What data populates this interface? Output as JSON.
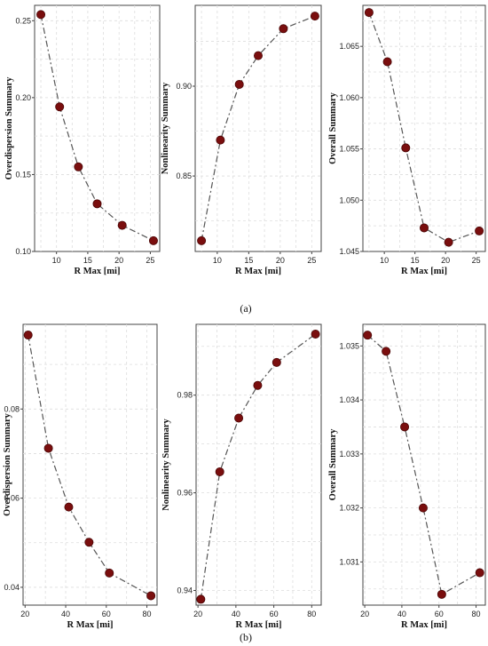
{
  "panel_labels": [
    "(a)",
    "(b)"
  ],
  "style": {
    "marker_color": "#7a0e0e",
    "line_color": "#555555",
    "grid_color": "#dddddd",
    "frame_color": "#444444"
  },
  "chart_data": [
    {
      "type": "line",
      "xlabel": "R Max [mi]",
      "ylabel": "Overdispersion Summary",
      "x": [
        7.5,
        10.5,
        13.5,
        16.5,
        20.5,
        25.5
      ],
      "y": [
        0.254,
        0.194,
        0.155,
        0.131,
        0.117,
        0.107
      ],
      "xlim": [
        6.5,
        26.5
      ],
      "ylim": [
        0.1,
        0.26
      ],
      "xticks": [
        10,
        15,
        20,
        25
      ],
      "yticks": [
        0.1,
        0.15,
        0.2,
        0.25
      ],
      "ytick_labels": [
        "0.10",
        "0.15",
        "0.20",
        "0.25"
      ],
      "grid": true
    },
    {
      "type": "line",
      "xlabel": "R Max [mi]",
      "ylabel": "Nonlinearity Summary",
      "x": [
        7.5,
        10.5,
        13.5,
        16.5,
        20.5,
        25.5
      ],
      "y": [
        0.814,
        0.87,
        0.901,
        0.917,
        0.932,
        0.939
      ],
      "xlim": [
        6.5,
        26.5
      ],
      "ylim": [
        0.808,
        0.945
      ],
      "xticks": [
        10,
        15,
        20,
        25
      ],
      "yticks": [
        0.85,
        0.9
      ],
      "ytick_labels": [
        "0.85",
        "0.90"
      ],
      "grid": true
    },
    {
      "type": "line",
      "xlabel": "R Max [mi]",
      "ylabel": "Overall Summary",
      "x": [
        7.5,
        10.5,
        13.5,
        16.5,
        20.5,
        25.5
      ],
      "y": [
        1.0683,
        1.0635,
        1.0551,
        1.0473,
        1.0459,
        1.047
      ],
      "xlim": [
        6.5,
        26.5
      ],
      "ylim": [
        1.045,
        1.069
      ],
      "xticks": [
        10,
        15,
        20,
        25
      ],
      "yticks": [
        1.045,
        1.05,
        1.055,
        1.06,
        1.065
      ],
      "ytick_labels": [
        "1.045",
        "1.050",
        "1.055",
        "1.060",
        "1.065"
      ],
      "grid": true
    },
    {
      "type": "line",
      "xlabel": "R Max [mi]",
      "ylabel": "Overdispersion Summary",
      "x": [
        21.5,
        31.5,
        41.5,
        51.5,
        61.5,
        82.0
      ],
      "y": [
        0.0966,
        0.0712,
        0.058,
        0.0501,
        0.0432,
        0.0381
      ],
      "xlim": [
        19,
        85
      ],
      "ylim": [
        0.036,
        0.099
      ],
      "xticks": [
        20,
        40,
        60,
        80
      ],
      "yticks": [
        0.04,
        0.06,
        0.08
      ],
      "ytick_labels": [
        "0.04",
        "0.06",
        "0.08"
      ],
      "grid": true
    },
    {
      "type": "line",
      "xlabel": "R Max [mi]",
      "ylabel": "Nonlinearity Summary",
      "x": [
        21.5,
        31.5,
        41.5,
        51.5,
        61.5,
        82.0
      ],
      "y": [
        0.9382,
        0.9643,
        0.9753,
        0.982,
        0.9867,
        0.9925
      ],
      "xlim": [
        19,
        85
      ],
      "ylim": [
        0.937,
        0.9945
      ],
      "xticks": [
        20,
        40,
        60,
        80
      ],
      "yticks": [
        0.94,
        0.96,
        0.98
      ],
      "ytick_labels": [
        "0.94",
        "0.96",
        "0.98"
      ],
      "grid": true
    },
    {
      "type": "line",
      "xlabel": "R Max [mi]",
      "ylabel": "Overall Summary",
      "x": [
        21.5,
        31.5,
        41.5,
        51.5,
        61.5,
        82.0
      ],
      "y": [
        1.0352,
        1.0349,
        1.0335,
        1.032,
        1.0304,
        1.0308
      ],
      "xlim": [
        19,
        85
      ],
      "ylim": [
        1.0302,
        1.0354
      ],
      "xticks": [
        20,
        40,
        60,
        80
      ],
      "yticks": [
        1.031,
        1.032,
        1.033,
        1.034,
        1.035
      ],
      "ytick_labels": [
        "1.031",
        "1.032",
        "1.033",
        "1.034",
        "1.035"
      ],
      "grid": true
    }
  ]
}
